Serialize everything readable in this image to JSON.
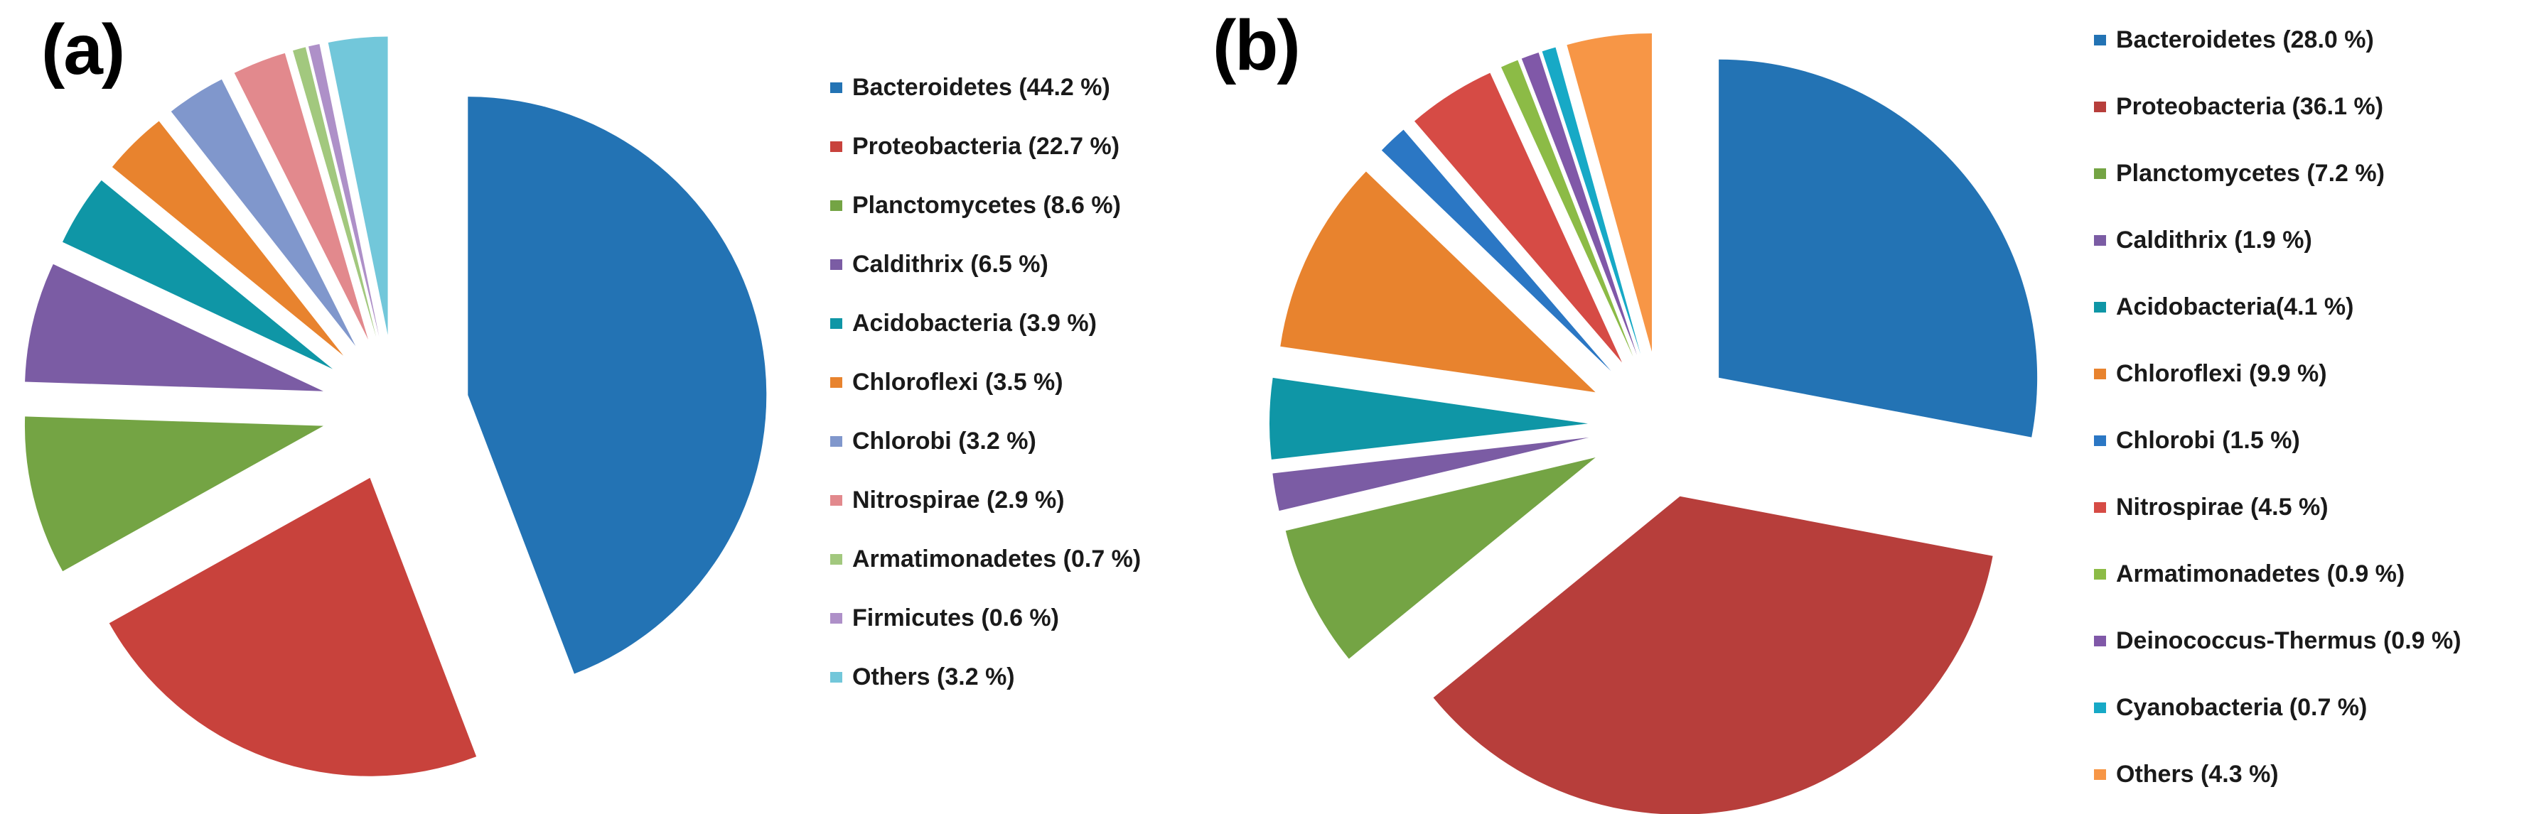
{
  "figure": {
    "background": "#ffffff",
    "panels": [
      {
        "id": "a",
        "label": "(a)"
      },
      {
        "id": "b",
        "label": "(b)"
      }
    ]
  },
  "chart_data": [
    {
      "type": "pie",
      "panel": "(a)",
      "style": "exploded",
      "start_angle_deg": 0,
      "direction": "clockwise",
      "legend_position": "right",
      "categories": [
        "Bacteroidetes",
        "Proteobacteria",
        "Planctomycetes",
        "Caldithrix",
        "Acidobacteria",
        "Chloroflexi",
        "Chlorobi",
        "Nitrospirae",
        "Armatimonadetes",
        "Firmicutes",
        "Others"
      ],
      "values": [
        44.2,
        22.7,
        8.6,
        6.5,
        3.9,
        3.5,
        3.2,
        2.9,
        0.7,
        0.6,
        3.2
      ],
      "colors": [
        "#2373B4",
        "#C8423C",
        "#74A444",
        "#7B5CA4",
        "#0F96A6",
        "#E8832E",
        "#8097CC",
        "#E2898D",
        "#A2C87E",
        "#AE90C8",
        "#72C7DA"
      ],
      "legend_labels": [
        "Bacteroidetes (44.2 %)",
        "Proteobacteria (22.7 %)",
        "Planctomycetes (8.6 %)",
        "Caldithrix (6.5 %)",
        "Acidobacteria (3.9 %)",
        "Chloroflexi (3.5 %)",
        "Chlorobi (3.2 %)",
        "Nitrospirae (2.9 %)",
        "Armatimonadetes (0.7 %)",
        "Firmicutes (0.6 %)",
        "Others (3.2 %)"
      ]
    },
    {
      "type": "pie",
      "panel": "(b)",
      "style": "exploded",
      "start_angle_deg": 0,
      "direction": "clockwise",
      "legend_position": "right",
      "categories": [
        "Bacteroidetes",
        "Proteobacteria",
        "Planctomycetes",
        "Caldithrix",
        "Acidobacteria",
        "Chloroflexi",
        "Chlorobi",
        "Nitrospirae",
        "Armatimonadetes",
        "Deinococcus-Thermus",
        "Cyanobacteria",
        "Others"
      ],
      "values": [
        28.0,
        36.1,
        7.2,
        1.9,
        4.1,
        9.9,
        1.5,
        4.5,
        0.9,
        0.9,
        0.7,
        4.3
      ],
      "colors": [
        "#2373B4",
        "#B73E3B",
        "#74A444",
        "#7B5CA4",
        "#0F96A6",
        "#E8832E",
        "#2B77C4",
        "#D64B45",
        "#8CBB46",
        "#8058A8",
        "#17A9C6",
        "#F79646"
      ],
      "legend_labels": [
        "Bacteroidetes (28.0 %)",
        "Proteobacteria (36.1 %)",
        "Planctomycetes (7.2 %)",
        "Caldithrix (1.9 %)",
        "Acidobacteria(4.1 %)",
        "Chloroflexi (9.9 %)",
        "Chlorobi (1.5 %)",
        "Nitrospirae (4.5 %)",
        "Armatimonadetes (0.9 %)",
        "Deinococcus-Thermus (0.9 %)",
        "Cyanobacteria (0.7 %)",
        "Others (4.3 %)"
      ]
    }
  ]
}
